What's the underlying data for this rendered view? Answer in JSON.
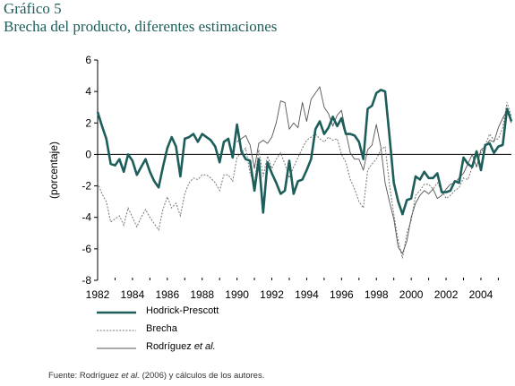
{
  "header": {
    "title": "Gráfico 5",
    "subtitle": "Brecha del producto, diferentes estimaciones"
  },
  "source": {
    "prefix": "Fuente: Rodríguez ",
    "et_al": "et al.",
    "suffix": " (2006) y cálculos de los autores."
  },
  "colors": {
    "hodrick_prescott": "#1d5e5a",
    "brecha": "#777777",
    "rodriguez": "#555555",
    "axis": "#000000"
  },
  "chart_data": {
    "type": "line",
    "ylabel": "(porcentaje)",
    "xlim": [
      1982,
      2005.75
    ],
    "ylim": [
      -8,
      6
    ],
    "yticks": [
      6,
      4,
      2,
      0,
      -2,
      -4,
      -6,
      -8
    ],
    "xticks": [
      1982,
      1984,
      1986,
      1988,
      1990,
      1992,
      1994,
      1996,
      1998,
      2000,
      2002,
      2004
    ],
    "zero_line": true,
    "legend_position": "bottom-left",
    "x_frequency": "quarterly (1982Q1-2005Q4)",
    "x_start": 1982,
    "x_step": 0.25,
    "series": [
      {
        "name": "Hodrick-Prescott",
        "style": "thick-solid",
        "values": [
          2.7,
          1.8,
          1.0,
          -0.6,
          -0.7,
          -0.3,
          -1.1,
          0.0,
          -0.4,
          -1.3,
          -0.8,
          -0.3,
          -1.1,
          -1.7,
          -2.1,
          -0.8,
          0.4,
          1.1,
          0.5,
          -1.4,
          1.0,
          1.1,
          1.3,
          0.8,
          1.3,
          1.1,
          0.9,
          0.5,
          -0.5,
          0.8,
          1.0,
          -0.2,
          1.9,
          0.2,
          -0.3,
          -0.4,
          -2.3,
          -0.3,
          -3.7,
          -0.5,
          -1.2,
          -1.8,
          -2.5,
          -2.3,
          -0.4,
          -2.5,
          -1.7,
          -1.6,
          -1.0,
          -0.3,
          1.6,
          2.1,
          1.3,
          1.7,
          2.4,
          1.8,
          2.3,
          1.3,
          1.3,
          1.2,
          0.8,
          -0.3,
          2.9,
          3.1,
          3.9,
          4.1,
          4.0,
          1.2,
          -1.8,
          -3.0,
          -3.8,
          -2.9,
          -2.8,
          -1.4,
          -1.6,
          -1.1,
          -1.5,
          -1.5,
          -1.2,
          -2.4,
          -2.4,
          -2.3,
          -1.7,
          -1.8,
          -0.2,
          -0.6,
          -0.8,
          0.2,
          -1.0,
          0.6,
          0.7,
          0.1,
          0.5,
          0.6,
          2.9,
          2.1
        ]
      },
      {
        "name": "Brecha",
        "style": "dotted",
        "values": [
          -1.8,
          -2.5,
          -3.0,
          -4.3,
          -4.1,
          -3.9,
          -4.5,
          -3.4,
          -4.0,
          -4.6,
          -4.0,
          -3.5,
          -4.0,
          -4.4,
          -4.8,
          -3.5,
          -2.7,
          -3.4,
          -3.1,
          -3.9,
          -2.5,
          -1.8,
          -1.5,
          -1.6,
          -1.3,
          -1.3,
          -1.5,
          -1.8,
          -2.3,
          -1.3,
          -1.3,
          -1.7,
          -0.2,
          0.1,
          0.4,
          -1.2,
          -1.9,
          0.3,
          -1.4,
          -0.1,
          -0.9,
          -0.3,
          0.1,
          -0.6,
          -1.5,
          -0.8,
          -0.2,
          0.4,
          0.9,
          1.1,
          1.3,
          1.0,
          0.8,
          1.1,
          0.9,
          1.0,
          0.0,
          -0.5,
          -1.6,
          -2.2,
          -3.0,
          -3.4,
          -1.0,
          -0.6,
          -0.3,
          0.3,
          0.5,
          -1.9,
          -3.8,
          -5.5,
          -6.6,
          -5.0,
          -4.2,
          -2.6,
          -2.3,
          -1.9,
          -1.9,
          -2.2,
          -1.8,
          -2.3,
          -2.8,
          -2.6,
          -2.3,
          -2.1,
          -1.5,
          -1.6,
          -0.8,
          0.0,
          0.1,
          0.6,
          1.3,
          0.9,
          1.0,
          1.7,
          3.3,
          2.4
        ]
      },
      {
        "name": "Rodríguez et al.",
        "style": "thin-solid",
        "values": [
          null,
          null,
          null,
          null,
          null,
          null,
          null,
          null,
          null,
          null,
          null,
          null,
          null,
          null,
          null,
          null,
          null,
          null,
          null,
          null,
          null,
          null,
          null,
          null,
          null,
          null,
          null,
          null,
          null,
          null,
          null,
          null,
          0.8,
          1.0,
          1.2,
          0.6,
          -0.9,
          0.7,
          0.9,
          0.7,
          1.1,
          2.0,
          3.4,
          3.3,
          1.6,
          2.0,
          1.7,
          3.3,
          2.1,
          3.5,
          3.9,
          4.3,
          3.0,
          2.6,
          1.8,
          2.5,
          2.8,
          1.4,
          0.1,
          -0.3,
          -0.3,
          -1.0,
          0.3,
          0.6,
          1.9,
          0.5,
          -1.8,
          -3.0,
          -4.1,
          -5.9,
          -6.3,
          -5.5,
          -4.0,
          -3.1,
          -2.6,
          -2.3,
          -2.5,
          -2.2,
          -2.8,
          -2.6,
          -2.2,
          -1.9,
          -1.8,
          -1.5,
          -1.2,
          -0.6,
          0.0,
          -0.8,
          0.3,
          0.5,
          0.9,
          0.8,
          1.7,
          2.3,
          2.8,
          2.0
        ]
      }
    ]
  }
}
